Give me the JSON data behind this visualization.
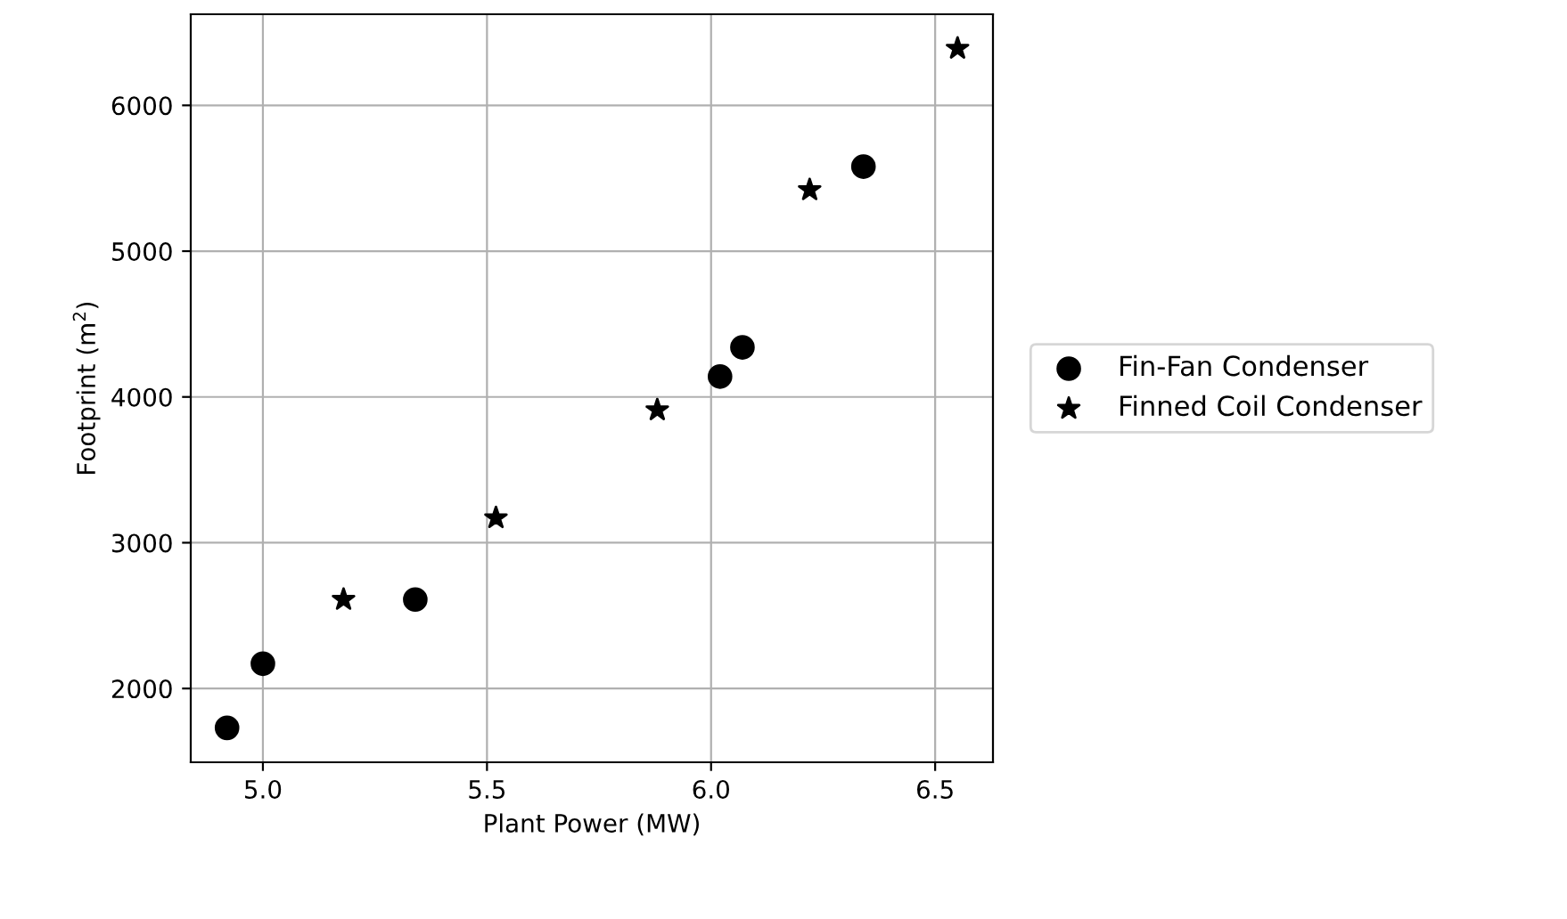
{
  "chart_data": {
    "type": "scatter",
    "xlabel": "Plant Power (MW)",
    "ylabel": "Footprint (m$^{2}$)",
    "series": [
      {
        "name": "Fin-Fan Condenser",
        "color": "#000000",
        "marker": "circle",
        "x": [
          4.92,
          5.0,
          5.34,
          6.02,
          6.07,
          6.34
        ],
        "values": [
          1730,
          2170,
          2610,
          4140,
          4340,
          5580
        ]
      },
      {
        "name": "Finned Coil Condenser",
        "color": "#000000",
        "marker": "star",
        "x": [
          5.18,
          5.52,
          5.88,
          6.22,
          6.55
        ],
        "values": [
          2610,
          3170,
          3910,
          5420,
          6390
        ]
      }
    ],
    "xlim": [
      4.839,
      6.629
    ],
    "ylim": [
      1494,
      6625
    ],
    "xticks": [
      {
        "value": 5.0,
        "label": "5.0"
      },
      {
        "value": 5.5,
        "label": "5.5"
      },
      {
        "value": 6.0,
        "label": "6.0"
      },
      {
        "value": 6.5,
        "label": "6.5"
      }
    ],
    "yticks": [
      2000,
      3000,
      4000,
      5000,
      6000
    ],
    "grid": true,
    "legend": "right"
  }
}
